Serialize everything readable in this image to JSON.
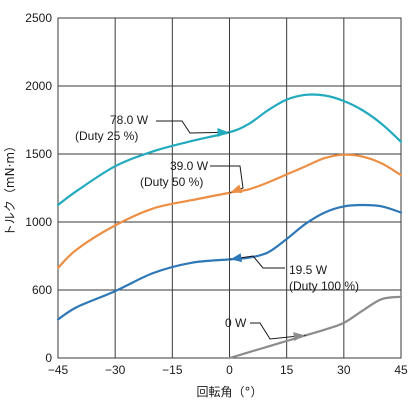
{
  "chart_data": {
    "type": "line",
    "xlabel": "回転角（°）",
    "ylabel": "トルク（mN·m）",
    "xlim": [
      -45,
      45
    ],
    "ylim": [
      0,
      2500
    ],
    "x_ticks": [
      "−45",
      "−30",
      "−15",
      "0",
      "15",
      "30",
      "45"
    ],
    "y_ticks": [
      "0",
      "600",
      "1000",
      "1500",
      "2000",
      "2500"
    ],
    "grid": true,
    "series": [
      {
        "color": "#22aabf",
        "x": [
          -45,
          -40,
          -30,
          -20,
          -10,
          0,
          5,
          10,
          15,
          20,
          25,
          30,
          35,
          40,
          45
        ],
        "y": [
          1125,
          1230,
          1410,
          1520,
          1595,
          1660,
          1720,
          1820,
          1900,
          1935,
          1930,
          1890,
          1820,
          1720,
          1590
        ]
      },
      {
        "color": "#ec8f45",
        "x": [
          -45,
          -40,
          -30,
          -20,
          -10,
          0,
          5,
          10,
          15,
          20,
          25,
          30,
          35,
          40,
          45
        ],
        "y": [
          730,
          840,
          980,
          1100,
          1160,
          1215,
          1240,
          1290,
          1350,
          1410,
          1470,
          1495,
          1480,
          1430,
          1345
        ]
      },
      {
        "color": "#2e78b7",
        "x": [
          -45,
          -40,
          -30,
          -20,
          -10,
          0,
          5,
          10,
          15,
          20,
          25,
          30,
          35,
          40,
          45
        ],
        "y": [
          340,
          450,
          590,
          700,
          760,
          780,
          790,
          820,
          900,
          990,
          1070,
          1115,
          1125,
          1115,
          1070
        ]
      },
      {
        "color": "#8c8c8c",
        "x": [
          0,
          5,
          10,
          15,
          20,
          25,
          30,
          35,
          40,
          45
        ],
        "y": [
          0,
          50,
          100,
          150,
          200,
          250,
          310,
          420,
          520,
          540
        ]
      }
    ],
    "annotations": [
      {
        "lines": [
          "78.0 W",
          "(Duty 25 %)"
        ],
        "series": 0,
        "x": 0
      },
      {
        "lines": [
          "39.0 W",
          "(Duty 50 %)"
        ],
        "series": 1,
        "x": 0
      },
      {
        "lines": [
          "19.5 W",
          "(Duty 100 %)"
        ],
        "series": 2,
        "x": 0
      },
      {
        "lines": [
          "0 W"
        ],
        "series": 3,
        "x": 20
      }
    ]
  }
}
